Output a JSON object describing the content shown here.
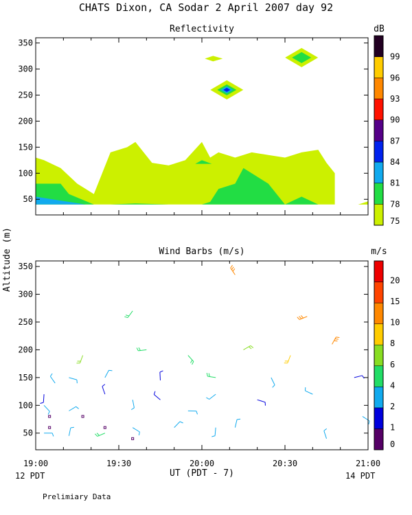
{
  "title": "CHATS Dixon, CA  Sodar   2 April 2007  day  92",
  "footer_note": "Prelimiary Data",
  "y_axis_label": "Altitude (m)",
  "x_axis_label": "UT  (PDT - 7)",
  "x_ticks": [
    "19:00",
    "19:30",
    "20:00",
    "20:30",
    "21:00"
  ],
  "local_time_left": "12 PDT",
  "local_time_right": "14 PDT",
  "y_ticks_top": [
    "50",
    "100",
    "150",
    "200",
    "250",
    "300",
    "350"
  ],
  "y_ticks_bottom": [
    "50",
    "100",
    "150",
    "200",
    "250",
    "300",
    "350"
  ],
  "colorbar_top": {
    "unit": "dB",
    "labels": [
      "75",
      "78",
      "81",
      "84",
      "87",
      "90",
      "93",
      "96",
      "99"
    ],
    "colors": [
      "#ccf000",
      "#22dd44",
      "#11aaee",
      "#0022ee",
      "#550088",
      "#ff1100",
      "#ff8800",
      "#ffcc00",
      "#220022"
    ]
  },
  "colorbar_bottom": {
    "unit": "m/s",
    "labels": [
      "0",
      "1",
      "2",
      "4",
      "6",
      "8",
      "10",
      "15",
      "20"
    ],
    "colors": [
      "#550066",
      "#0000dd",
      "#11aaee",
      "#22dd66",
      "#88dd22",
      "#ffcc00",
      "#ff8800",
      "#ff4400",
      "#ee0000"
    ]
  },
  "chart_data": [
    {
      "type": "heatmap",
      "title": "Reflectivity",
      "unit": "dB",
      "x_range": [
        "19:00",
        "21:00"
      ],
      "ylim": [
        20,
        360
      ],
      "color_levels": [
        75,
        78,
        81,
        84,
        87,
        90,
        93,
        96,
        99
      ],
      "regions": [
        {
          "level": 75,
          "x": [
            0,
            2.5,
            7.5,
            12.5,
            17.5,
            20,
            22.5,
            27.5,
            30,
            35,
            40,
            45,
            50,
            52.5,
            55,
            60,
            65,
            70,
            75,
            80,
            85,
            87.5,
            90,
            90,
            85,
            80,
            75,
            70,
            65,
            60,
            55,
            50,
            45,
            40,
            35,
            30,
            27.5,
            25,
            20,
            15,
            10,
            5,
            0
          ],
          "y": [
            130,
            125,
            110,
            80,
            60,
            100,
            140,
            150,
            160,
            120,
            115,
            125,
            160,
            130,
            140,
            130,
            140,
            135,
            130,
            140,
            145,
            120,
            100,
            40,
            40,
            40,
            40,
            40,
            40,
            40,
            40,
            40,
            40,
            40,
            40,
            40,
            40,
            40,
            40,
            40,
            40,
            40,
            40
          ]
        },
        {
          "level": 78,
          "x": [
            0,
            7.5,
            10,
            17.5,
            22.5,
            30,
            40,
            45,
            50,
            52.5,
            55,
            60,
            62.5,
            70,
            75,
            80,
            85,
            0
          ],
          "y": [
            80,
            80,
            60,
            40,
            40,
            42,
            40,
            40,
            40,
            45,
            70,
            80,
            110,
            80,
            40,
            55,
            40,
            40
          ]
        },
        {
          "level": 81,
          "x": [
            0,
            5,
            10,
            15,
            20,
            0
          ],
          "y": [
            55,
            50,
            45,
            40,
            40,
            40
          ]
        },
        {
          "level": 78,
          "x": [
            48,
            50,
            53
          ],
          "y": [
            118,
            125,
            118
          ]
        },
        {
          "level": 84,
          "x": [
            57.5
          ],
          "y": [
            260
          ]
        },
        {
          "level": 78,
          "x": [
            80
          ],
          "y": [
            322
          ]
        }
      ]
    },
    {
      "type": "scatter",
      "title": "Wind Barbs (m/s)",
      "unit": "m/s",
      "x_range": [
        "19:00",
        "21:00"
      ],
      "ylim": [
        20,
        360
      ],
      "color_levels": [
        0,
        1,
        2,
        4,
        6,
        8,
        10,
        15,
        20
      ],
      "barbs": [
        {
          "time": "19:03",
          "z": 50,
          "speed": 3
        },
        {
          "time": "19:03",
          "z": 100,
          "speed": 3
        },
        {
          "time": "19:03",
          "z": 120,
          "speed": 1
        },
        {
          "time": "19:05",
          "z": 80,
          "speed": 0
        },
        {
          "time": "19:05",
          "z": 60,
          "speed": 0
        },
        {
          "time": "19:07",
          "z": 140,
          "speed": 3
        },
        {
          "time": "19:12",
          "z": 45,
          "speed": 2
        },
        {
          "time": "19:12",
          "z": 90,
          "speed": 3
        },
        {
          "time": "19:12",
          "z": 150,
          "speed": 3
        },
        {
          "time": "19:17",
          "z": 80,
          "speed": 0
        },
        {
          "time": "19:17",
          "z": 190,
          "speed": 6
        },
        {
          "time": "19:25",
          "z": 50,
          "speed": 4
        },
        {
          "time": "19:25",
          "z": 60,
          "speed": 0
        },
        {
          "time": "19:25",
          "z": 120,
          "speed": 1
        },
        {
          "time": "19:25",
          "z": 150,
          "speed": 3
        },
        {
          "time": "19:35",
          "z": 40,
          "speed": 0
        },
        {
          "time": "19:35",
          "z": 60,
          "speed": 2
        },
        {
          "time": "19:35",
          "z": 110,
          "speed": 2
        },
        {
          "time": "19:35",
          "z": 270,
          "speed": 4
        },
        {
          "time": "19:40",
          "z": 200,
          "speed": 5
        },
        {
          "time": "19:45",
          "z": 110,
          "speed": 1
        },
        {
          "time": "19:45",
          "z": 145,
          "speed": 1
        },
        {
          "time": "19:50",
          "z": 60,
          "speed": 3
        },
        {
          "time": "19:55",
          "z": 90,
          "speed": 3
        },
        {
          "time": "19:55",
          "z": 190,
          "speed": 5
        },
        {
          "time": "20:05",
          "z": 60,
          "speed": 3
        },
        {
          "time": "20:05",
          "z": 120,
          "speed": 3
        },
        {
          "time": "20:05",
          "z": 150,
          "speed": 4
        },
        {
          "time": "20:12",
          "z": 335,
          "speed": 10
        },
        {
          "time": "20:12",
          "z": 60,
          "speed": 3
        },
        {
          "time": "20:15",
          "z": 200,
          "speed": 6
        },
        {
          "time": "20:20",
          "z": 110,
          "speed": 1
        },
        {
          "time": "20:25",
          "z": 150,
          "speed": 3
        },
        {
          "time": "20:32",
          "z": 190,
          "speed": 8
        },
        {
          "time": "20:38",
          "z": 260,
          "speed": 10
        },
        {
          "time": "20:40",
          "z": 120,
          "speed": 3
        },
        {
          "time": "20:45",
          "z": 40,
          "speed": 2
        },
        {
          "time": "20:47",
          "z": 210,
          "speed": 10
        },
        {
          "time": "20:55",
          "z": 150,
          "speed": 1
        },
        {
          "time": "20:58",
          "z": 80,
          "speed": 3
        }
      ]
    }
  ]
}
